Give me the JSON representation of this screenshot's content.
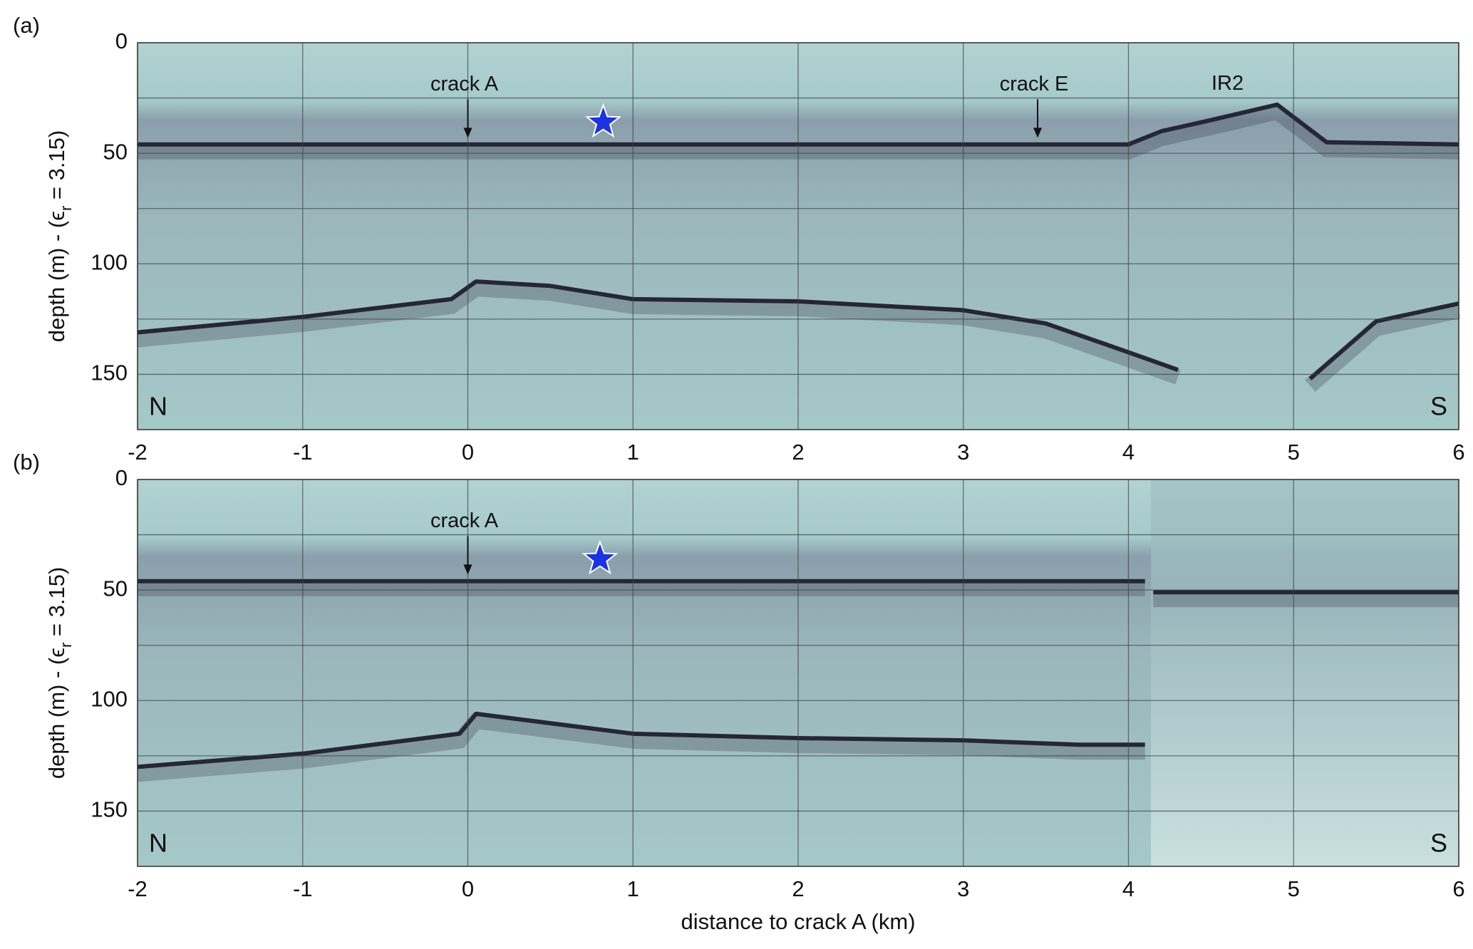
{
  "chart_data": [
    {
      "type": "radargram",
      "panel_label": "(a)",
      "ylabel": {
        "main": "depth (m) - (ϵ",
        "sub": "r",
        "rest": " = 3.15)"
      },
      "xlim": [
        -2,
        6
      ],
      "xticks": [
        -2,
        -1,
        0,
        1,
        2,
        3,
        4,
        5,
        6
      ],
      "ylim": [
        0,
        175
      ],
      "yticks": [
        0,
        50,
        100,
        150
      ],
      "yminor": [
        25,
        75,
        125
      ],
      "y_reversed": true,
      "grid": true,
      "corner_labels": {
        "left": "N",
        "right": "S"
      },
      "reflector_color": "#262636",
      "reflectors": [
        {
          "x": [
            -2,
            -1,
            0,
            1,
            2,
            3,
            4,
            4.2,
            4.5,
            4.9,
            5.2,
            6
          ],
          "y": [
            46,
            46,
            46,
            46,
            46,
            46,
            46,
            40,
            35,
            28,
            45,
            46
          ]
        },
        {
          "x": [
            -2,
            -1,
            -0.1,
            0.05,
            0.5,
            1,
            2,
            3,
            3.5,
            4,
            4.3,
            null,
            5.1,
            5.5,
            6
          ],
          "y": [
            131,
            124,
            116,
            108,
            110,
            116,
            117,
            121,
            127,
            140,
            148,
            null,
            152,
            126,
            118
          ]
        }
      ],
      "annotations": [
        {
          "text": "crack A",
          "x": 0,
          "y": 43,
          "arrow": true
        },
        {
          "text": "crack E",
          "x": 3.45,
          "y": 43,
          "arrow": true
        },
        {
          "text": "IR2",
          "x": 4.6,
          "y": 22,
          "arrow": false
        }
      ],
      "star": {
        "x": 0.82,
        "y": 36,
        "color": "#1b33e0"
      }
    },
    {
      "type": "radargram",
      "panel_label": "(b)",
      "ylabel": {
        "main": "depth (m) - (ϵ",
        "sub": "r",
        "rest": " = 3.15)"
      },
      "xlabel": "distance to crack A (km)",
      "xlim": [
        -2,
        6
      ],
      "xticks": [
        -2,
        -1,
        0,
        1,
        2,
        3,
        4,
        5,
        6
      ],
      "ylim": [
        0,
        175
      ],
      "yticks": [
        0,
        50,
        100,
        150
      ],
      "yminor": [
        25,
        75,
        125
      ],
      "y_reversed": true,
      "grid": true,
      "corner_labels": {
        "left": "N",
        "right": "S"
      },
      "reflector_color": "#262636",
      "reflectors": [
        {
          "x": [
            -2,
            -1,
            0,
            1,
            2,
            3,
            4.1,
            null,
            4.15,
            5,
            6
          ],
          "y": [
            46,
            46,
            46,
            46,
            46,
            46,
            46,
            null,
            51,
            51,
            51
          ]
        },
        {
          "x": [
            -2,
            -1,
            -0.05,
            0.05,
            1,
            2,
            3,
            3.7,
            4.1
          ],
          "y": [
            130,
            124,
            115,
            106,
            115,
            117,
            118,
            120,
            120
          ]
        }
      ],
      "annotations": [
        {
          "text": "crack A",
          "x": 0,
          "y": 43,
          "arrow": true
        }
      ],
      "star": {
        "x": 0.8,
        "y": 36,
        "color": "#1b33e0"
      }
    }
  ]
}
